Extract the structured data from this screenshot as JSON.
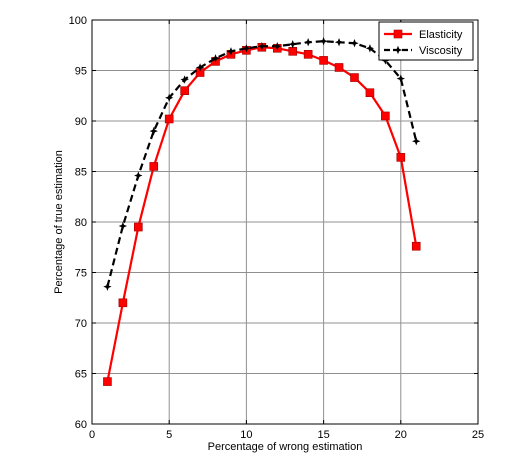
{
  "chart_data": {
    "type": "line",
    "xlabel": "Percentage of wrong estimation",
    "ylabel": "Percentage of true estimation",
    "xlim": [
      0,
      25
    ],
    "ylim": [
      60,
      100
    ],
    "xticks": [
      0,
      5,
      10,
      15,
      20,
      25
    ],
    "yticks": [
      60,
      65,
      70,
      75,
      80,
      85,
      90,
      95,
      100
    ],
    "grid": true,
    "legend_position": "top-right",
    "series": [
      {
        "name": "Elasticity",
        "color": "#ff0000",
        "line_style": "solid",
        "marker": "square",
        "x": [
          1,
          2,
          3,
          4,
          5,
          6,
          7,
          8,
          9,
          10,
          11,
          12,
          13,
          14,
          15,
          16,
          17,
          18,
          19,
          20,
          21
        ],
        "y": [
          64.2,
          72.0,
          79.5,
          85.5,
          90.2,
          93.0,
          94.8,
          95.9,
          96.6,
          97.0,
          97.3,
          97.2,
          96.9,
          96.6,
          96.0,
          95.3,
          94.3,
          92.8,
          90.5,
          86.4,
          77.6
        ]
      },
      {
        "name": "Viscosity",
        "color": "#000000",
        "line_style": "dashed",
        "marker": "star",
        "x": [
          1,
          2,
          3,
          4,
          5,
          6,
          7,
          8,
          9,
          10,
          11,
          12,
          13,
          14,
          15,
          16,
          17,
          18,
          19,
          20,
          21
        ],
        "y": [
          73.6,
          79.6,
          84.6,
          89.0,
          92.3,
          94.1,
          95.3,
          96.2,
          96.9,
          97.2,
          97.4,
          97.4,
          97.6,
          97.8,
          97.9,
          97.8,
          97.7,
          97.2,
          96.0,
          94.2,
          88.0
        ]
      }
    ]
  }
}
